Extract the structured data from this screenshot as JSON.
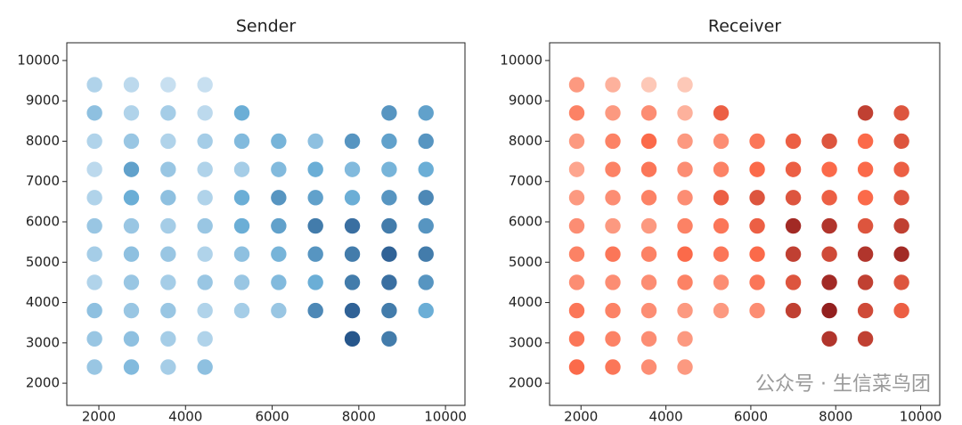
{
  "chart_data": [
    {
      "type": "scatter",
      "title": "Sender",
      "x": [
        1900,
        2750,
        3600,
        4450,
        1900,
        2750,
        3600,
        4450,
        5300,
        8700,
        9550,
        1900,
        2750,
        3600,
        4450,
        5300,
        6150,
        7000,
        7850,
        8700,
        9550,
        1900,
        2750,
        3600,
        4450,
        5300,
        6150,
        7000,
        7850,
        8700,
        9550,
        1900,
        2750,
        3600,
        4450,
        5300,
        6150,
        7000,
        7850,
        8700,
        9550,
        1900,
        2750,
        3600,
        4450,
        5300,
        6150,
        7000,
        7850,
        8700,
        9550,
        1900,
        2750,
        3600,
        4450,
        5300,
        6150,
        7000,
        7850,
        8700,
        9550,
        1900,
        2750,
        3600,
        4450,
        5300,
        6150,
        7000,
        7850,
        8700,
        9550,
        1900,
        2750,
        3600,
        4450,
        5300,
        6150,
        7000,
        7850,
        8700,
        9550,
        1900,
        2750,
        3600,
        4450,
        7850,
        8700,
        1900,
        2750,
        3600,
        4450
      ],
      "y": [
        9400,
        9400,
        9400,
        9400,
        8700,
        8700,
        8700,
        8700,
        8700,
        8700,
        8700,
        8000,
        8000,
        8000,
        8000,
        8000,
        8000,
        8000,
        8000,
        8000,
        8000,
        7300,
        7300,
        7300,
        7300,
        7300,
        7300,
        7300,
        7300,
        7300,
        7300,
        6600,
        6600,
        6600,
        6600,
        6600,
        6600,
        6600,
        6600,
        6600,
        6600,
        5900,
        5900,
        5900,
        5900,
        5900,
        5900,
        5900,
        5900,
        5900,
        5900,
        5200,
        5200,
        5200,
        5200,
        5200,
        5200,
        5200,
        5200,
        5200,
        5200,
        4500,
        4500,
        4500,
        4500,
        4500,
        4500,
        4500,
        4500,
        4500,
        4500,
        3800,
        3800,
        3800,
        3800,
        3800,
        3800,
        3800,
        3800,
        3800,
        3800,
        3100,
        3100,
        3100,
        3100,
        3100,
        3100,
        2400,
        2400,
        2400,
        2400
      ],
      "values": [
        0.2,
        0.15,
        0.1,
        0.1,
        0.35,
        0.2,
        0.25,
        0.15,
        0.5,
        0.6,
        0.55,
        0.2,
        0.3,
        0.2,
        0.25,
        0.4,
        0.45,
        0.35,
        0.6,
        0.55,
        0.6,
        0.15,
        0.55,
        0.3,
        0.2,
        0.25,
        0.4,
        0.5,
        0.4,
        0.45,
        0.5,
        0.2,
        0.5,
        0.35,
        0.2,
        0.5,
        0.6,
        0.55,
        0.5,
        0.6,
        0.65,
        0.3,
        0.3,
        0.25,
        0.3,
        0.5,
        0.55,
        0.7,
        0.75,
        0.7,
        0.6,
        0.25,
        0.35,
        0.3,
        0.2,
        0.35,
        0.45,
        0.6,
        0.7,
        0.8,
        0.7,
        0.2,
        0.3,
        0.25,
        0.3,
        0.3,
        0.4,
        0.5,
        0.7,
        0.75,
        0.6,
        0.35,
        0.3,
        0.3,
        0.2,
        0.25,
        0.3,
        0.65,
        0.8,
        0.7,
        0.5,
        0.3,
        0.35,
        0.25,
        0.2,
        0.85,
        0.7,
        0.3,
        0.4,
        0.25,
        0.35
      ],
      "cmap": [
        "#deebf7",
        "#6baed6",
        "#08306b"
      ],
      "xlim": [
        1260,
        10450
      ],
      "ylim": [
        1450,
        10440
      ],
      "xticks": [
        2000,
        4000,
        6000,
        8000,
        10000
      ],
      "yticks": [
        2000,
        3000,
        4000,
        5000,
        6000,
        7000,
        8000,
        9000,
        10000
      ]
    },
    {
      "type": "scatter",
      "title": "Receiver",
      "x": [
        1900,
        2750,
        3600,
        4450,
        1900,
        2750,
        3600,
        4450,
        5300,
        8700,
        9550,
        1900,
        2750,
        3600,
        4450,
        5300,
        6150,
        7000,
        7850,
        8700,
        9550,
        1900,
        2750,
        3600,
        4450,
        5300,
        6150,
        7000,
        7850,
        8700,
        9550,
        1900,
        2750,
        3600,
        4450,
        5300,
        6150,
        7000,
        7850,
        8700,
        9550,
        1900,
        2750,
        3600,
        4450,
        5300,
        6150,
        7000,
        7850,
        8700,
        9550,
        1900,
        2750,
        3600,
        4450,
        5300,
        6150,
        7000,
        7850,
        8700,
        9550,
        1900,
        2750,
        3600,
        4450,
        5300,
        6150,
        7000,
        7850,
        8700,
        9550,
        1900,
        2750,
        3600,
        4450,
        5300,
        6150,
        7000,
        7850,
        8700,
        9550,
        1900,
        2750,
        3600,
        4450,
        7850,
        8700,
        1900,
        2750,
        3600,
        4450
      ],
      "y": [
        9400,
        9400,
        9400,
        9400,
        8700,
        8700,
        8700,
        8700,
        8700,
        8700,
        8700,
        8000,
        8000,
        8000,
        8000,
        8000,
        8000,
        8000,
        8000,
        8000,
        8000,
        7300,
        7300,
        7300,
        7300,
        7300,
        7300,
        7300,
        7300,
        7300,
        7300,
        6600,
        6600,
        6600,
        6600,
        6600,
        6600,
        6600,
        6600,
        6600,
        6600,
        5900,
        5900,
        5900,
        5900,
        5900,
        5900,
        5900,
        5900,
        5900,
        5900,
        5200,
        5200,
        5200,
        5200,
        5200,
        5200,
        5200,
        5200,
        5200,
        5200,
        4500,
        4500,
        4500,
        4500,
        4500,
        4500,
        4500,
        4500,
        4500,
        4500,
        3800,
        3800,
        3800,
        3800,
        3800,
        3800,
        3800,
        3800,
        3800,
        3800,
        3100,
        3100,
        3100,
        3100,
        3100,
        3100,
        2400,
        2400,
        2400,
        2400
      ],
      "values": [
        0.3,
        0.2,
        0.1,
        0.1,
        0.4,
        0.3,
        0.35,
        0.2,
        0.55,
        0.7,
        0.6,
        0.3,
        0.4,
        0.5,
        0.3,
        0.35,
        0.45,
        0.55,
        0.6,
        0.5,
        0.6,
        0.25,
        0.4,
        0.45,
        0.35,
        0.4,
        0.5,
        0.55,
        0.5,
        0.5,
        0.55,
        0.3,
        0.35,
        0.4,
        0.35,
        0.55,
        0.6,
        0.6,
        0.55,
        0.5,
        0.6,
        0.35,
        0.3,
        0.3,
        0.4,
        0.45,
        0.55,
        0.8,
        0.75,
        0.6,
        0.7,
        0.4,
        0.45,
        0.4,
        0.5,
        0.45,
        0.5,
        0.7,
        0.65,
        0.75,
        0.8,
        0.35,
        0.35,
        0.35,
        0.4,
        0.35,
        0.45,
        0.6,
        0.8,
        0.7,
        0.6,
        0.45,
        0.4,
        0.35,
        0.3,
        0.3,
        0.35,
        0.7,
        0.85,
        0.65,
        0.55,
        0.45,
        0.4,
        0.35,
        0.3,
        0.75,
        0.7,
        0.5,
        0.45,
        0.35,
        0.3
      ],
      "cmap": [
        "#fee0d2",
        "#fb6a4a",
        "#67000d"
      ],
      "xlim": [
        1260,
        10450
      ],
      "ylim": [
        1450,
        10440
      ],
      "xticks": [
        2000,
        4000,
        6000,
        8000,
        10000
      ],
      "yticks": [
        2000,
        3000,
        4000,
        5000,
        6000,
        7000,
        8000,
        9000,
        10000
      ],
      "watermark": "公众号 · 生信菜鸟团"
    }
  ]
}
